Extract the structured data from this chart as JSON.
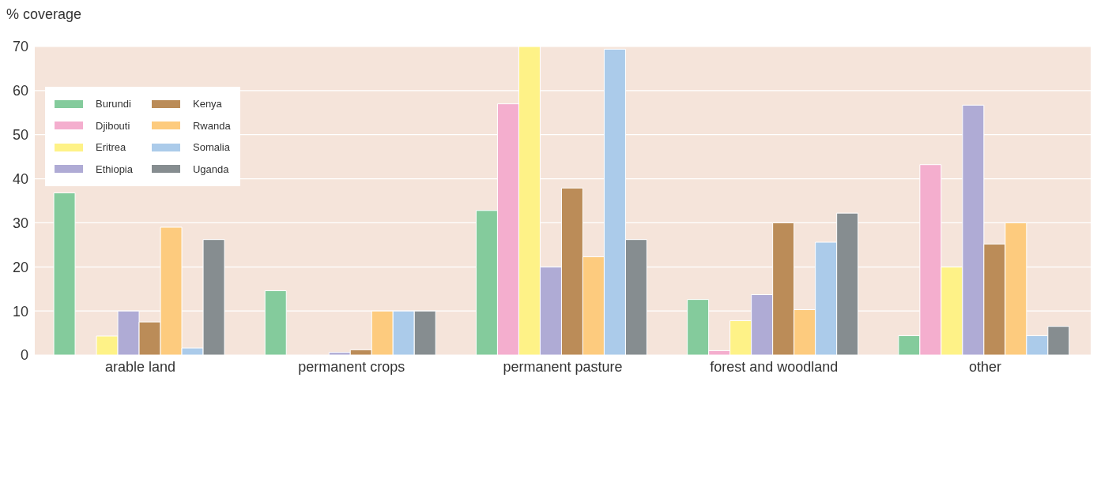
{
  "chart_data": {
    "type": "bar",
    "ylabel": "% coverage",
    "categories": [
      "arable land",
      "permanent crops",
      "permanent pasture",
      "forest and woodland",
      "other"
    ],
    "series": [
      {
        "name": "Burundi",
        "color": "#84cb9c",
        "values": [
          36.8,
          14.6,
          32.8,
          12.6,
          4.4
        ]
      },
      {
        "name": "Djibouti",
        "color": "#f4aece",
        "values": [
          0,
          0,
          57,
          1,
          43.2
        ]
      },
      {
        "name": "Eritrea",
        "color": "#fef287",
        "values": [
          4.3,
          0,
          70,
          7.8,
          20
        ]
      },
      {
        "name": "Ethiopia",
        "color": "#afabd5",
        "values": [
          10,
          0.6,
          20,
          13.7,
          56.7
        ]
      },
      {
        "name": "Kenya",
        "color": "#bb8c58",
        "values": [
          7.5,
          1.2,
          37.9,
          30,
          25.2
        ]
      },
      {
        "name": "Rwanda",
        "color": "#fdcb7e",
        "values": [
          29,
          10,
          22.3,
          10.3,
          30
        ]
      },
      {
        "name": "Somalia",
        "color": "#abcbea",
        "values": [
          1.6,
          10,
          69.4,
          25.6,
          4.4
        ]
      },
      {
        "name": "Uganda",
        "color": "#868d90",
        "values": [
          26.2,
          10,
          26.2,
          32.2,
          6.5
        ]
      }
    ],
    "ylim": [
      0,
      70
    ],
    "yticks": [
      0,
      10,
      20,
      30,
      40,
      50,
      60,
      70
    ],
    "grid": "y",
    "legend": "top left"
  }
}
